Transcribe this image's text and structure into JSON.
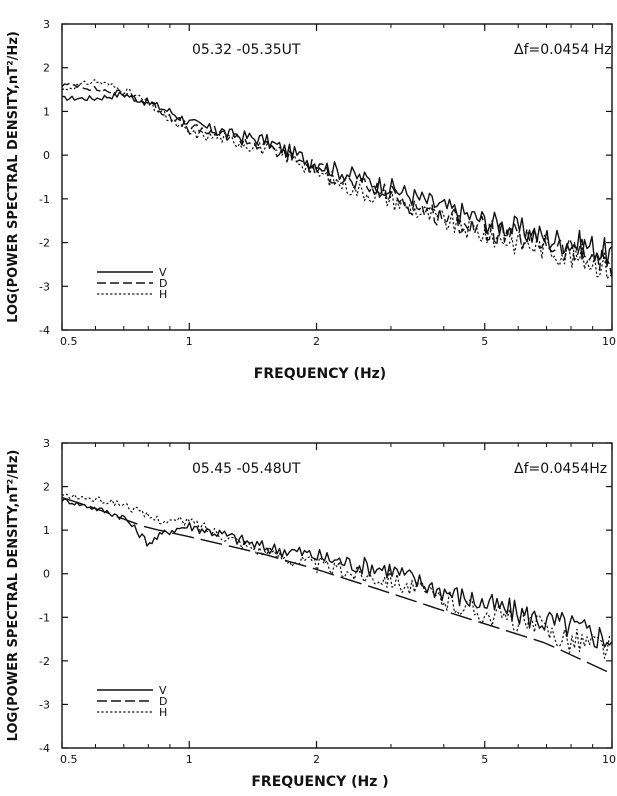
{
  "chart_data": [
    {
      "type": "line",
      "annotation_time": "05.32 -05.35UT",
      "annotation_df": "Δf=0.0454 Hz",
      "xlabel": "FREQUENCY (Hz)",
      "ylabel": "LOG(POWER SPECTRAL DENSITY,nT²/Hz)",
      "xscale": "log",
      "xlim": [
        0.5,
        10
      ],
      "ylim": [
        -4,
        3
      ],
      "xticks": [
        0.5,
        1,
        2,
        5,
        10
      ],
      "xtick_labels": [
        "0.5",
        "1",
        "2",
        "5",
        "10"
      ],
      "yticks": [
        -4,
        -3,
        -2,
        -1,
        0,
        1,
        2,
        3
      ],
      "ytick_labels": [
        "-4",
        "-3",
        "-2",
        "-1",
        "0",
        "1",
        "2",
        "3"
      ],
      "legend": [
        "V",
        "D",
        "H"
      ],
      "legend_position": "bottom-left",
      "series": [
        {
          "name": "V",
          "style": "solid",
          "x": [
            0.5,
            0.55,
            0.6,
            0.7,
            0.8,
            0.9,
            1.0,
            1.2,
            1.5,
            1.8,
            2.0,
            2.5,
            3.0,
            3.5,
            4.0,
            5.0,
            6.0,
            7.0,
            8.0,
            9.0,
            10.0
          ],
          "values": [
            1.3,
            1.3,
            1.3,
            1.4,
            1.2,
            1.0,
            0.75,
            0.5,
            0.35,
            0.0,
            -0.2,
            -0.5,
            -0.75,
            -1.0,
            -1.2,
            -1.5,
            -1.7,
            -1.9,
            -2.0,
            -2.1,
            -2.3
          ]
        },
        {
          "name": "D",
          "style": "dashed",
          "x": [
            0.5,
            0.55,
            0.6,
            0.7,
            0.8,
            0.9,
            1.0,
            1.2,
            1.5,
            1.8,
            2.0,
            2.5,
            3.0,
            3.5,
            4.0,
            5.0,
            6.0,
            7.0,
            8.0,
            9.0,
            10.0
          ],
          "values": [
            1.6,
            1.6,
            1.5,
            1.4,
            1.2,
            0.9,
            0.6,
            0.5,
            0.2,
            -0.1,
            -0.3,
            -0.7,
            -0.9,
            -1.2,
            -1.4,
            -1.7,
            -1.9,
            -2.0,
            -2.2,
            -2.3,
            -2.5
          ]
        },
        {
          "name": "H",
          "style": "dotted",
          "x": [
            0.5,
            0.55,
            0.6,
            0.7,
            0.8,
            0.9,
            1.0,
            1.2,
            1.5,
            1.8,
            2.0,
            2.5,
            3.0,
            3.5,
            4.0,
            5.0,
            6.0,
            7.0,
            8.0,
            9.0,
            10.0
          ],
          "values": [
            1.5,
            1.6,
            1.7,
            1.5,
            1.2,
            0.8,
            0.5,
            0.4,
            0.15,
            -0.1,
            -0.4,
            -0.8,
            -1.0,
            -1.3,
            -1.5,
            -1.8,
            -2.0,
            -2.1,
            -2.3,
            -2.4,
            -2.6
          ]
        }
      ]
    },
    {
      "type": "line",
      "annotation_time": "05.45 -05.48UT",
      "annotation_df": "Δf=0.0454Hz",
      "xlabel": "FREQUENCY (Hz )",
      "ylabel": "LOG(POWER SPECTRAL DENSITY,nT²/Hz)",
      "xscale": "log",
      "xlim": [
        0.5,
        10
      ],
      "ylim": [
        -4,
        3
      ],
      "xticks": [
        0.5,
        1,
        2,
        5,
        10
      ],
      "xtick_labels": [
        "0.5",
        "1",
        "2",
        "5",
        "10"
      ],
      "yticks": [
        -4,
        -3,
        -2,
        -1,
        0,
        1,
        2,
        3
      ],
      "ytick_labels": [
        "-4",
        "-3",
        "-2",
        "-1",
        "0",
        "1",
        "2",
        "3"
      ],
      "legend": [
        "V",
        "D",
        "H"
      ],
      "legend_position": "bottom-left",
      "series": [
        {
          "name": "V",
          "style": "solid",
          "x": [
            0.5,
            0.6,
            0.7,
            0.8,
            0.9,
            1.0,
            1.2,
            1.5,
            1.8,
            2.0,
            2.5,
            3.0,
            3.5,
            4.0,
            5.0,
            6.0,
            7.0,
            8.0,
            9.0,
            10.0
          ],
          "values": [
            1.7,
            1.5,
            1.3,
            0.7,
            1.0,
            1.1,
            0.9,
            0.6,
            0.5,
            0.4,
            0.2,
            0.1,
            -0.2,
            -0.4,
            -0.7,
            -0.9,
            -1.1,
            -1.2,
            -1.4,
            -1.5
          ]
        },
        {
          "name": "D",
          "style": "long-dashed",
          "x": [
            0.5,
            0.6,
            0.7,
            0.8,
            1.0,
            1.5,
            2.0,
            3.0,
            4.0,
            5.0,
            7.0,
            10.0
          ],
          "values": [
            1.75,
            1.5,
            1.25,
            1.05,
            0.85,
            0.45,
            0.1,
            -0.45,
            -0.85,
            -1.15,
            -1.6,
            -2.3
          ]
        },
        {
          "name": "H",
          "style": "dotted",
          "x": [
            0.5,
            0.6,
            0.7,
            0.8,
            0.9,
            1.0,
            1.2,
            1.5,
            1.8,
            2.0,
            2.5,
            3.0,
            3.5,
            4.0,
            5.0,
            6.0,
            7.0,
            8.0,
            9.0,
            10.0
          ],
          "values": [
            1.8,
            1.7,
            1.6,
            1.3,
            1.2,
            1.2,
            0.9,
            0.5,
            0.3,
            0.2,
            0.0,
            -0.1,
            -0.4,
            -0.6,
            -0.9,
            -1.1,
            -1.3,
            -1.5,
            -1.6,
            -1.7
          ]
        }
      ]
    }
  ]
}
